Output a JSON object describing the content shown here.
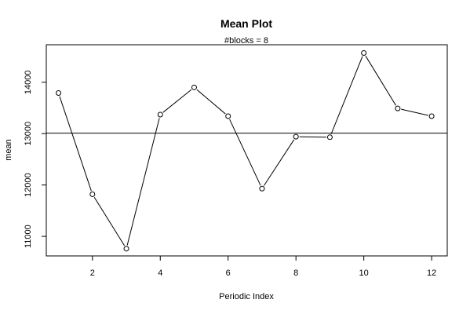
{
  "chart_data": {
    "type": "line",
    "title": "Mean Plot",
    "subtitle": "#blocks =  8",
    "xlabel": "Periodic Index",
    "ylabel": "mean",
    "x": [
      1,
      2,
      3,
      4,
      5,
      6,
      7,
      8,
      9,
      10,
      11,
      12
    ],
    "series": [
      {
        "values": [
          13790,
          11820,
          10760,
          13370,
          13900,
          13340,
          11930,
          12940,
          12930,
          14570,
          13490,
          13340
        ]
      }
    ],
    "reference_line": {
      "y": 13010
    },
    "xlim": [
      0.64,
      12.46
    ],
    "ylim": [
      10620,
      14730
    ],
    "x_ticks": [
      2,
      4,
      6,
      8,
      10,
      12
    ],
    "y_ticks": [
      11000,
      12000,
      13000,
      14000
    ],
    "grid": false,
    "marker": "open-circle",
    "line_color": "#000000"
  }
}
